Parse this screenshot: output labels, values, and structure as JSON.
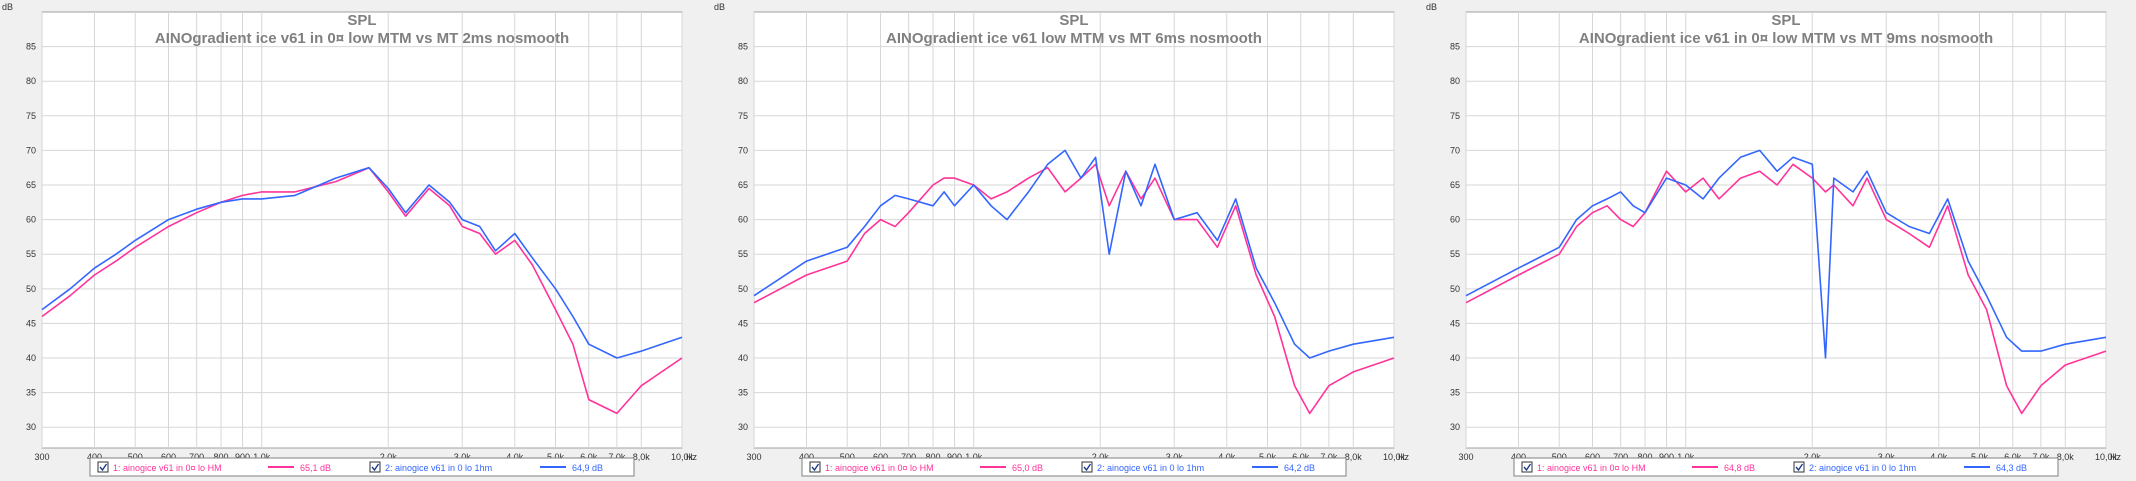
{
  "chart_data": [
    {
      "type": "line",
      "title": "SPL",
      "subtitle": "AINOgradient ice v61 in 0¤ low MTM vs MT 2ms nosmooth",
      "ylabel": "dB",
      "xlabel": "Hz",
      "x_scale": "log",
      "xlim": [
        300,
        10000
      ],
      "ylim": [
        27,
        90
      ],
      "grid": true,
      "legend_placement": "bottom",
      "x_ticks": [
        300,
        400,
        500,
        600,
        700,
        800,
        900,
        1000,
        2000,
        3000,
        4000,
        5000,
        6000,
        7000,
        8000,
        10000
      ],
      "x_tick_labels": [
        "300",
        "400",
        "500",
        "600",
        "700",
        "800",
        "900",
        "1,0k",
        "2,0k",
        "3,0k",
        "4,0k",
        "5,0k",
        "6,0k",
        "7,0k",
        "8,0k",
        "10,0k"
      ],
      "y_ticks": [
        30,
        35,
        40,
        45,
        50,
        55,
        60,
        65,
        70,
        75,
        80,
        85
      ],
      "series": [
        {
          "name": "1: ainogice v61 in 0¤ lo HM",
          "value_label": "65,1 dB",
          "color": "#ff3399",
          "x": [
            300,
            350,
            400,
            450,
            500,
            600,
            700,
            800,
            900,
            1000,
            1200,
            1500,
            1800,
            2000,
            2200,
            2500,
            2800,
            3000,
            3300,
            3600,
            4000,
            4400,
            5000,
            5500,
            6000,
            7000,
            8000,
            10000
          ],
          "y": [
            46,
            49,
            52,
            54,
            56,
            59,
            61,
            62.5,
            63.5,
            64,
            64,
            65.5,
            67.5,
            64,
            60.5,
            64.5,
            62,
            59,
            58,
            55,
            57,
            53.5,
            47,
            42,
            34,
            32,
            36,
            40
          ]
        },
        {
          "name": "2: ainogice v61 in 0 lo 1hm",
          "value_label": "64,9 dB",
          "color": "#3366ff",
          "x": [
            300,
            350,
            400,
            450,
            500,
            600,
            700,
            800,
            900,
            1000,
            1200,
            1500,
            1800,
            2000,
            2200,
            2500,
            2800,
            3000,
            3300,
            3600,
            4000,
            4400,
            5000,
            5500,
            6000,
            7000,
            8000,
            10000
          ],
          "y": [
            47,
            50,
            53,
            55,
            57,
            60,
            61.5,
            62.5,
            63,
            63,
            63.5,
            66,
            67.5,
            64.5,
            61,
            65,
            62.5,
            60,
            59,
            55.5,
            58,
            54.5,
            50,
            46,
            42,
            40,
            41,
            43
          ]
        }
      ]
    },
    {
      "type": "line",
      "title": "SPL",
      "subtitle": "AINOgradient ice v61 low MTM vs MT 6ms nosmooth",
      "ylabel": "dB",
      "xlabel": "Hz",
      "x_scale": "log",
      "xlim": [
        300,
        10000
      ],
      "ylim": [
        27,
        90
      ],
      "grid": true,
      "legend_placement": "bottom",
      "x_ticks": [
        300,
        400,
        500,
        600,
        700,
        800,
        900,
        1000,
        2000,
        3000,
        4000,
        5000,
        6000,
        7000,
        8000,
        10000
      ],
      "x_tick_labels": [
        "300",
        "400",
        "500",
        "600",
        "700",
        "800",
        "900",
        "1,0k",
        "2,0k",
        "3,0k",
        "4,0k",
        "5,0k",
        "6,0k",
        "7,0k",
        "8,0k",
        "10,0k"
      ],
      "y_ticks": [
        30,
        35,
        40,
        45,
        50,
        55,
        60,
        65,
        70,
        75,
        80,
        85
      ],
      "series": [
        {
          "name": "1: ainogice v61 in 0¤ lo HM",
          "value_label": "65,0 dB",
          "color": "#ff3399",
          "x": [
            300,
            400,
            500,
            550,
            600,
            650,
            700,
            800,
            850,
            900,
            1000,
            1100,
            1200,
            1350,
            1500,
            1650,
            1800,
            1950,
            2100,
            2300,
            2500,
            2700,
            3000,
            3400,
            3800,
            4200,
            4700,
            5200,
            5800,
            6300,
            7000,
            8000,
            10000
          ],
          "y": [
            48,
            52,
            54,
            58,
            60,
            59,
            61,
            65,
            66,
            66,
            65,
            63,
            64,
            66,
            67.5,
            64,
            66,
            68,
            62,
            67,
            63,
            66,
            60,
            60,
            56,
            62,
            52,
            46,
            36,
            32,
            36,
            38,
            40
          ]
        },
        {
          "name": "2: ainogice v61 in 0 lo 1hm",
          "value_label": "64,2 dB",
          "color": "#3366ff",
          "x": [
            300,
            400,
            500,
            550,
            600,
            650,
            700,
            800,
            850,
            900,
            1000,
            1100,
            1200,
            1350,
            1500,
            1650,
            1800,
            1950,
            2100,
            2300,
            2500,
            2700,
            3000,
            3400,
            3800,
            4200,
            4700,
            5200,
            5800,
            6300,
            7000,
            8000,
            10000
          ],
          "y": [
            49,
            54,
            56,
            59,
            62,
            63.5,
            63,
            62,
            64,
            62,
            65,
            62,
            60,
            64,
            68,
            70,
            66,
            69,
            55,
            67,
            62,
            68,
            60,
            61,
            57,
            63,
            53,
            48,
            42,
            40,
            41,
            42,
            43
          ]
        }
      ]
    },
    {
      "type": "line",
      "title": "SPL",
      "subtitle": "AINOgradient ice v61 in 0¤ low MTM vs MT 9ms nosmooth",
      "ylabel": "dB",
      "xlabel": "Hz",
      "x_scale": "log",
      "xlim": [
        300,
        10000
      ],
      "ylim": [
        27,
        90
      ],
      "grid": true,
      "legend_placement": "bottom",
      "x_ticks": [
        300,
        400,
        500,
        600,
        700,
        800,
        900,
        1000,
        2000,
        3000,
        4000,
        5000,
        6000,
        7000,
        8000,
        10000
      ],
      "x_tick_labels": [
        "300",
        "400",
        "500",
        "600",
        "700",
        "800",
        "900",
        "1,0k",
        "2,0k",
        "3,0k",
        "4,0k",
        "5,0k",
        "6,0k",
        "7,0k",
        "8,0k",
        "10,0k"
      ],
      "y_ticks": [
        30,
        35,
        40,
        45,
        50,
        55,
        60,
        65,
        70,
        75,
        80,
        85
      ],
      "series": [
        {
          "name": "1: ainogice v61 in 0¤ lo HM",
          "value_label": "64,8 dB",
          "color": "#ff3399",
          "x": [
            300,
            400,
            500,
            550,
            600,
            650,
            700,
            750,
            800,
            900,
            1000,
            1100,
            1200,
            1350,
            1500,
            1650,
            1800,
            2000,
            2150,
            2250,
            2500,
            2700,
            3000,
            3400,
            3800,
            4200,
            4700,
            5200,
            5800,
            6300,
            7000,
            8000,
            10000
          ],
          "y": [
            48,
            52,
            55,
            59,
            61,
            62,
            60,
            59,
            61,
            67,
            64,
            66,
            63,
            66,
            67,
            65,
            68,
            66,
            64,
            65,
            62,
            66,
            60,
            58,
            56,
            62,
            52,
            47,
            36,
            32,
            36,
            39,
            41
          ]
        },
        {
          "name": "2: ainogice v61 in 0 lo 1hm",
          "value_label": "64,3 dB",
          "color": "#3366ff",
          "x": [
            300,
            400,
            500,
            550,
            600,
            650,
            700,
            750,
            800,
            900,
            1000,
            1100,
            1200,
            1350,
            1500,
            1650,
            1800,
            2000,
            2150,
            2250,
            2500,
            2700,
            3000,
            3400,
            3800,
            4200,
            4700,
            5200,
            5800,
            6300,
            7000,
            8000,
            10000
          ],
          "y": [
            49,
            53,
            56,
            60,
            62,
            63,
            64,
            62,
            61,
            66,
            65,
            63,
            66,
            69,
            70,
            67,
            69,
            68,
            40,
            66,
            64,
            67,
            61,
            59,
            58,
            63,
            54,
            49,
            43,
            41,
            41,
            42,
            43
          ]
        }
      ]
    }
  ]
}
